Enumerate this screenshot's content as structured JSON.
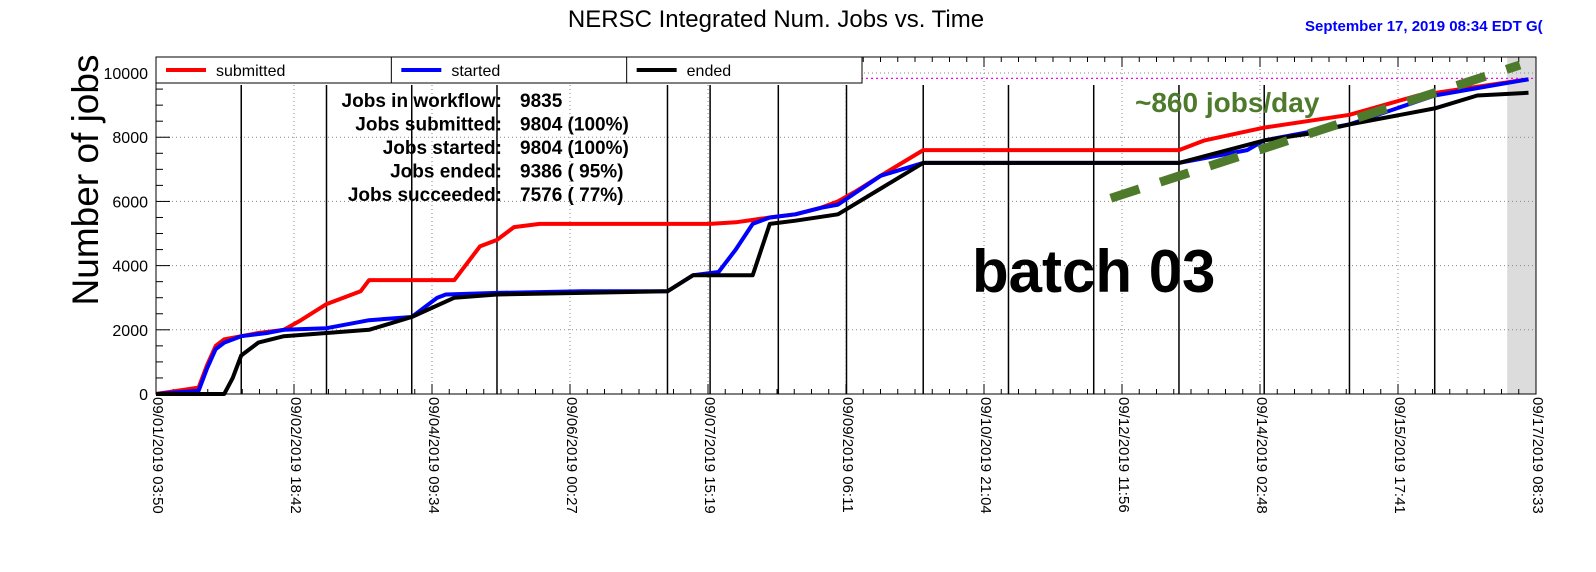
{
  "timestamp": "September 17, 2019  08:34 EDT G(",
  "chart_data": {
    "type": "line",
    "title": "NERSC Integrated Num. Jobs vs. Time",
    "ylabel": "Number of jobs",
    "xlabel": "",
    "ylim": [
      0,
      10500
    ],
    "yticks": [
      0,
      2000,
      4000,
      6000,
      8000,
      10000
    ],
    "ytick_labels": [
      "0",
      "2000",
      "4000",
      "6000",
      "8000",
      "10000"
    ],
    "x_unit": "days since 09/01/2019 03:50",
    "xlim": [
      0,
      16.1882
    ],
    "xticks": [
      0,
      1.6188,
      3.2376,
      4.8564,
      6.4753,
      8.0941,
      9.7132,
      11.3319,
      12.9507,
      14.5694,
      16.1882
    ],
    "xtick_labels": [
      "09/01/2019 03:50",
      "09/02/2019 18:42",
      "09/04/2019 09:34",
      "09/06/2019 00:27",
      "09/07/2019 15:19",
      "09/09/2019 06:11",
      "09/10/2019 21:04",
      "09/12/2019 11:56",
      "09/14/2019 02:48",
      "09/15/2019 17:41",
      "09/17/2019 08:33"
    ],
    "grid": true,
    "legend_position": "top",
    "workflow_total": 9835,
    "batch_lines": [
      1.0,
      2.0,
      3.0,
      4.0,
      6.0,
      6.5,
      7.3,
      8.1,
      9.0,
      10.0,
      11.0,
      12.0,
      13.0,
      14.0,
      15.0
    ],
    "series": [
      {
        "name": "submitted",
        "color": "#ff0000",
        "x": [
          0,
          0.5,
          0.6,
          0.7,
          0.8,
          1.0,
          1.2,
          1.5,
          1.7,
          2.0,
          2.4,
          2.5,
          3.5,
          3.6,
          3.8,
          4.0,
          4.2,
          4.5,
          4.8,
          5.0,
          6.5,
          6.8,
          7.2,
          7.5,
          7.8,
          8.0,
          8.2,
          8.5,
          9.0,
          10.0,
          11.0,
          12.0,
          12.3,
          13.0,
          14.0,
          14.8,
          16.1
        ],
        "y": [
          0,
          200,
          900,
          1500,
          1700,
          1800,
          1900,
          2000,
          2300,
          2800,
          3200,
          3550,
          3550,
          3900,
          4600,
          4800,
          5200,
          5300,
          5300,
          5300,
          5300,
          5350,
          5500,
          5600,
          5800,
          6000,
          6300,
          6800,
          7600,
          7600,
          7600,
          7600,
          7900,
          8300,
          8700,
          9300,
          9804
        ]
      },
      {
        "name": "started",
        "color": "#0000ff",
        "x": [
          0,
          0.5,
          0.6,
          0.7,
          0.8,
          1.0,
          1.3,
          1.5,
          2.0,
          2.5,
          3.0,
          3.3,
          3.4,
          4.0,
          5.0,
          6.0,
          6.3,
          6.6,
          6.8,
          7.0,
          7.2,
          7.5,
          7.8,
          8.0,
          8.5,
          9.0,
          10.0,
          11.0,
          12.0,
          12.8,
          13.0,
          14.0,
          15.0,
          16.1
        ],
        "y": [
          0,
          100,
          800,
          1400,
          1600,
          1800,
          1900,
          2000,
          2050,
          2300,
          2400,
          3000,
          3100,
          3150,
          3200,
          3200,
          3700,
          3800,
          4500,
          5300,
          5500,
          5600,
          5800,
          5900,
          6800,
          7200,
          7200,
          7200,
          7200,
          7600,
          7900,
          8400,
          9300,
          9804
        ]
      },
      {
        "name": "ended",
        "color": "#000000",
        "x": [
          0,
          0.8,
          0.9,
          1.0,
          1.2,
          1.5,
          2.0,
          2.5,
          3.0,
          3.5,
          4.0,
          5.0,
          6.0,
          6.3,
          7.0,
          7.2,
          7.5,
          8.0,
          8.5,
          9.0,
          10.0,
          11.0,
          12.0,
          13.0,
          13.5,
          14.0,
          15.0,
          15.5,
          16.1
        ],
        "y": [
          0,
          0,
          500,
          1200,
          1600,
          1800,
          1900,
          2000,
          2400,
          3000,
          3100,
          3150,
          3200,
          3700,
          3700,
          5300,
          5400,
          5600,
          6400,
          7200,
          7200,
          7200,
          7200,
          7900,
          8100,
          8400,
          8900,
          9300,
          9386
        ]
      }
    ],
    "fit_line": {
      "label": "~860 jobs/day",
      "color": "#4e7a2c",
      "x": [
        11.2,
        16.0
      ],
      "y": [
        6100,
        10250
      ]
    },
    "annotations": {
      "batch": "batch 03",
      "stats": [
        {
          "label": "Jobs in workflow:",
          "value": "9835"
        },
        {
          "label": "Jobs submitted:",
          "value": "9804 (100%)"
        },
        {
          "label": "Jobs started:",
          "value": "9804 (100%)"
        },
        {
          "label": "Jobs ended:",
          "value": "9386 ( 95%)"
        },
        {
          "label": "Jobs succeeded:",
          "value": "7576 ( 77%)"
        }
      ]
    }
  }
}
